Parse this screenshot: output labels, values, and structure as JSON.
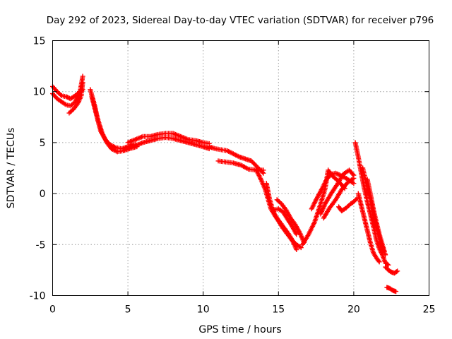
{
  "chart_data": {
    "type": "scatter",
    "title": "Day 292 of 2023, Sidereal Day-to-day VTEC variation (SDTVAR) for receiver p796",
    "xlabel": "GPS time / hours",
    "ylabel": "SDTVAR / TECUs",
    "xlim": [
      0,
      25
    ],
    "ylim": [
      -10,
      15
    ],
    "xticks": [
      0,
      5,
      10,
      15,
      20,
      25
    ],
    "yticks": [
      -10,
      -5,
      0,
      5,
      10,
      15
    ],
    "xtick_labels": [
      "0",
      "5",
      "10",
      "15",
      "20",
      "25"
    ],
    "ytick_labels": [
      "-10",
      "-5",
      "0",
      "5",
      "10",
      "15"
    ],
    "grid": true,
    "marker": "+",
    "color": "#ff0000",
    "series": [
      {
        "name": "seg1",
        "x": [
          0.0,
          0.3,
          0.6,
          0.9,
          1.2,
          1.5,
          1.8,
          2.0
        ],
        "y": [
          10.5,
          10.0,
          9.6,
          9.5,
          9.3,
          9.6,
          10.0,
          10.2
        ]
      },
      {
        "name": "seg2",
        "x": [
          0.0,
          0.3,
          0.6,
          0.9,
          1.2,
          1.5,
          1.8,
          2.0
        ],
        "y": [
          9.8,
          9.3,
          9.0,
          8.7,
          8.6,
          9.0,
          9.8,
          11.5
        ]
      },
      {
        "name": "seg3",
        "x": [
          1.1,
          1.4,
          1.7,
          1.9,
          2.0
        ],
        "y": [
          7.9,
          8.3,
          8.9,
          9.6,
          10.9
        ]
      },
      {
        "name": "seg4",
        "x": [
          2.5,
          2.8,
          3.0,
          3.2,
          3.5,
          3.8,
          4.2,
          4.6,
          5.0,
          5.5
        ],
        "y": [
          10.2,
          8.6,
          7.2,
          6.1,
          5.3,
          4.8,
          4.5,
          4.4,
          4.6,
          4.8
        ]
      },
      {
        "name": "seg5",
        "x": [
          2.6,
          2.9,
          3.1,
          3.3,
          3.6,
          3.9,
          4.3,
          4.7,
          5.1,
          5.6
        ],
        "y": [
          9.5,
          7.8,
          6.8,
          5.9,
          5.0,
          4.4,
          4.1,
          4.2,
          4.4,
          4.6
        ]
      },
      {
        "name": "seg6",
        "x": [
          5.0,
          5.5,
          6.0,
          6.5,
          7.0,
          7.5,
          8.0,
          8.5,
          9.0,
          9.5,
          10.0,
          10.4
        ],
        "y": [
          5.0,
          5.3,
          5.6,
          5.6,
          5.8,
          5.9,
          5.9,
          5.6,
          5.3,
          5.2,
          5.0,
          4.9
        ]
      },
      {
        "name": "seg7",
        "x": [
          5.0,
          5.5,
          6.0,
          6.5,
          7.0,
          7.5,
          8.0,
          8.5,
          9.0,
          9.5,
          10.0,
          10.4
        ],
        "y": [
          4.6,
          4.7,
          5.0,
          5.2,
          5.4,
          5.5,
          5.4,
          5.2,
          5.0,
          4.8,
          4.6,
          4.4
        ]
      },
      {
        "name": "seg8",
        "x": [
          10.4,
          10.8,
          11.2,
          11.6,
          12.0,
          12.4,
          12.8,
          13.2,
          13.6,
          14.0
        ],
        "y": [
          4.6,
          4.4,
          4.3,
          4.2,
          3.9,
          3.6,
          3.4,
          3.2,
          2.6,
          2.0
        ]
      },
      {
        "name": "seg9",
        "x": [
          11.0,
          11.5,
          12.0,
          12.5,
          13.0,
          13.5,
          14.0
        ],
        "y": [
          3.2,
          3.1,
          3.0,
          2.8,
          2.4,
          2.3,
          2.3
        ]
      },
      {
        "name": "seg10",
        "x": [
          13.5,
          13.8,
          14.1,
          14.3,
          14.5,
          14.7,
          15.0,
          15.3,
          15.6,
          15.9,
          16.2,
          16.5
        ],
        "y": [
          2.4,
          1.5,
          0.5,
          -0.5,
          -1.5,
          -2.0,
          -2.7,
          -3.4,
          -4.0,
          -4.6,
          -5.0,
          -5.3
        ]
      },
      {
        "name": "seg11",
        "x": [
          14.2,
          14.4,
          14.6,
          14.8,
          15.0,
          15.3,
          15.6,
          15.9,
          16.2
        ],
        "y": [
          1.0,
          -0.5,
          -1.5,
          -2.2,
          -2.6,
          -3.2,
          -3.8,
          -4.5,
          -5.5
        ]
      },
      {
        "name": "seg12",
        "x": [
          14.9,
          15.2,
          15.5,
          15.8,
          16.1,
          16.4,
          16.7
        ],
        "y": [
          -0.6,
          -1.0,
          -1.6,
          -2.4,
          -3.0,
          -3.8,
          -4.8
        ]
      },
      {
        "name": "seg13",
        "x": [
          14.7,
          15.0,
          15.3,
          15.6,
          15.9,
          16.2
        ],
        "y": [
          -1.6,
          -1.5,
          -1.8,
          -2.5,
          -3.2,
          -4.0
        ]
      },
      {
        "name": "seg14",
        "x": [
          16.6,
          17.0,
          17.4,
          17.8,
          18.1,
          18.3,
          18.6,
          19.0,
          19.4
        ],
        "y": [
          -5.0,
          -4.0,
          -2.8,
          -1.0,
          0.5,
          2.3,
          1.7,
          1.2,
          0.5
        ]
      },
      {
        "name": "seg15",
        "x": [
          17.2,
          17.5,
          17.9,
          18.2,
          18.5,
          18.8,
          19.1,
          19.5,
          20.0
        ],
        "y": [
          -1.5,
          -0.6,
          0.5,
          1.4,
          1.9,
          2.0,
          1.8,
          1.5,
          1.0
        ]
      },
      {
        "name": "seg16",
        "x": [
          17.8,
          18.1,
          18.5,
          18.9,
          19.3,
          19.7,
          20.0
        ],
        "y": [
          -2.0,
          -1.0,
          0.0,
          0.9,
          1.9,
          2.3,
          1.8
        ]
      },
      {
        "name": "seg17",
        "x": [
          18.0,
          18.4,
          18.8,
          19.2,
          19.6,
          20.0
        ],
        "y": [
          -2.4,
          -1.4,
          -0.6,
          0.4,
          1.1,
          1.5
        ]
      },
      {
        "name": "seg18",
        "x": [
          19.0,
          19.2,
          19.5,
          19.8,
          20.0,
          20.2
        ],
        "y": [
          -1.3,
          -1.7,
          -1.4,
          -1.0,
          -0.8,
          -0.5
        ]
      },
      {
        "name": "seg19",
        "x": [
          20.1,
          20.3,
          20.5,
          20.7,
          20.9,
          21.1,
          21.3,
          21.5,
          21.7,
          21.9,
          22.1,
          22.3
        ],
        "y": [
          5.0,
          3.6,
          2.0,
          0.5,
          -0.8,
          -2.0,
          -3.2,
          -4.5,
          -5.4,
          -6.0,
          -6.8,
          -7.0
        ]
      },
      {
        "name": "seg20",
        "x": [
          20.3,
          20.5,
          20.7,
          20.9,
          21.1,
          21.3,
          21.5,
          21.7
        ],
        "y": [
          0.0,
          -1.2,
          -2.4,
          -3.6,
          -4.8,
          -5.8,
          -6.3,
          -6.7
        ]
      },
      {
        "name": "seg21",
        "x": [
          20.6,
          20.8,
          21.0,
          21.2,
          21.4,
          21.6,
          21.8,
          22.0
        ],
        "y": [
          2.5,
          1.2,
          0.0,
          -1.2,
          -2.6,
          -3.8,
          -4.8,
          -5.6
        ]
      },
      {
        "name": "seg22",
        "x": [
          20.9,
          21.1,
          21.3,
          21.5,
          21.7,
          21.9,
          22.1
        ],
        "y": [
          1.4,
          0.0,
          -1.5,
          -2.8,
          -4.0,
          -5.0,
          -6.0
        ]
      },
      {
        "name": "seg23",
        "x": [
          22.1,
          22.3,
          22.5,
          22.7,
          22.9
        ],
        "y": [
          -7.2,
          -7.5,
          -7.7,
          -7.8,
          -7.6
        ]
      },
      {
        "name": "seg24",
        "x": [
          22.2,
          22.4,
          22.6,
          22.8
        ],
        "y": [
          -9.2,
          -9.3,
          -9.5,
          -9.6
        ]
      }
    ]
  }
}
